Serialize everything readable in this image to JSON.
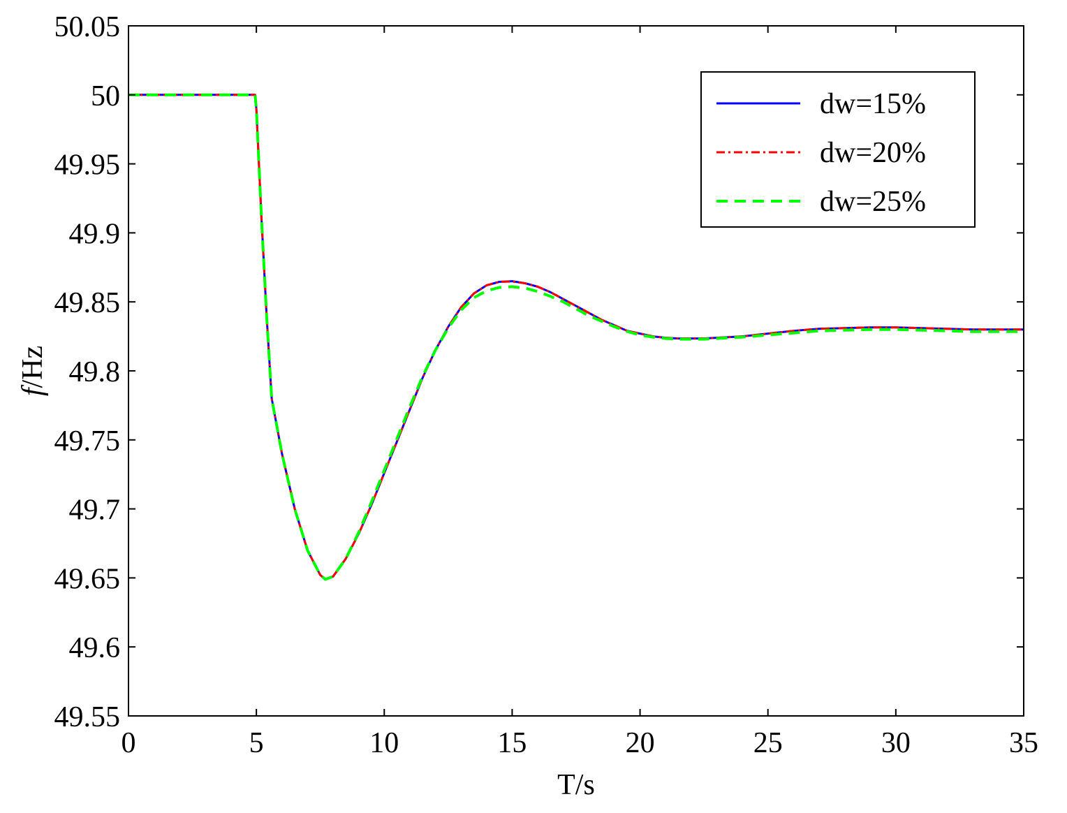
{
  "chart_data": {
    "type": "line",
    "title": "",
    "xlabel": "T/s",
    "ylabel_italic": "f",
    "ylabel_rest": "/Hz",
    "xlim": [
      0,
      35
    ],
    "ylim": [
      49.55,
      50.05
    ],
    "grid": false,
    "legend_position": "top-right",
    "x_ticks": [
      {
        "value": 0,
        "label": "0"
      },
      {
        "value": 5,
        "label": "5"
      },
      {
        "value": 10,
        "label": "10"
      },
      {
        "value": 15,
        "label": "15"
      },
      {
        "value": 20,
        "label": "20"
      },
      {
        "value": 25,
        "label": "25"
      },
      {
        "value": 30,
        "label": "30"
      },
      {
        "value": 35,
        "label": "35"
      }
    ],
    "y_ticks": [
      {
        "value": 49.55,
        "label": "49.55"
      },
      {
        "value": 49.6,
        "label": "49.6"
      },
      {
        "value": 49.65,
        "label": "49.65"
      },
      {
        "value": 49.7,
        "label": "49.7"
      },
      {
        "value": 49.75,
        "label": "49.75"
      },
      {
        "value": 49.8,
        "label": "49.8"
      },
      {
        "value": 49.85,
        "label": "49.85"
      },
      {
        "value": 49.9,
        "label": "49.9"
      },
      {
        "value": 49.95,
        "label": "49.95"
      },
      {
        "value": 50.0,
        "label": "50"
      },
      {
        "value": 50.05,
        "label": "50.05"
      }
    ],
    "series": [
      {
        "name": "dw=15%",
        "color": "#0000ff",
        "style": "solid",
        "x": [
          0,
          4.95,
          5.0,
          5.2,
          5.4,
          5.6,
          6.0,
          6.5,
          7.0,
          7.5,
          7.7,
          8.0,
          8.5,
          9.0,
          9.5,
          10.0,
          10.5,
          11.0,
          11.5,
          12.0,
          12.5,
          13.0,
          13.5,
          14.0,
          14.5,
          15.0,
          15.5,
          16.0,
          16.5,
          17.0,
          17.5,
          18.0,
          18.5,
          19.0,
          19.5,
          20.0,
          20.5,
          21.0,
          21.5,
          22.0,
          22.5,
          23.0,
          24.0,
          25.0,
          26.0,
          27.0,
          28.0,
          29.0,
          30.0,
          31.0,
          32.0,
          33.0,
          34.0,
          35.0
        ],
        "y": [
          50.0,
          50.0,
          49.99,
          49.91,
          49.84,
          49.78,
          49.74,
          49.7,
          49.67,
          49.652,
          49.649,
          49.651,
          49.664,
          49.682,
          49.703,
          49.726,
          49.749,
          49.772,
          49.795,
          49.815,
          49.832,
          49.846,
          49.856,
          49.862,
          49.8645,
          49.865,
          49.8635,
          49.861,
          49.857,
          49.852,
          49.847,
          49.842,
          49.837,
          49.833,
          49.829,
          49.827,
          49.825,
          49.824,
          49.8235,
          49.8235,
          49.8235,
          49.824,
          49.825,
          49.827,
          49.829,
          49.8305,
          49.831,
          49.8315,
          49.8315,
          49.831,
          49.8305,
          49.83,
          49.83,
          49.83
        ]
      },
      {
        "name": "dw=20%",
        "color": "#ff0000",
        "style": "dashdot",
        "x": [
          0,
          4.95,
          5.0,
          5.2,
          5.4,
          5.6,
          6.0,
          6.5,
          7.0,
          7.5,
          7.7,
          8.0,
          8.5,
          9.0,
          9.5,
          10.0,
          10.5,
          11.0,
          11.5,
          12.0,
          12.5,
          13.0,
          13.5,
          14.0,
          14.5,
          15.0,
          15.5,
          16.0,
          16.5,
          17.0,
          17.5,
          18.0,
          18.5,
          19.0,
          19.5,
          20.0,
          20.5,
          21.0,
          21.5,
          22.0,
          22.5,
          23.0,
          24.0,
          25.0,
          26.0,
          27.0,
          28.0,
          29.0,
          30.0,
          31.0,
          32.0,
          33.0,
          34.0,
          35.0
        ],
        "y": [
          50.0,
          50.0,
          49.99,
          49.91,
          49.84,
          49.78,
          49.74,
          49.7,
          49.67,
          49.652,
          49.649,
          49.651,
          49.664,
          49.682,
          49.703,
          49.726,
          49.749,
          49.772,
          49.795,
          49.815,
          49.832,
          49.846,
          49.856,
          49.862,
          49.8645,
          49.8648,
          49.8635,
          49.861,
          49.857,
          49.852,
          49.847,
          49.842,
          49.837,
          49.833,
          49.829,
          49.827,
          49.825,
          49.824,
          49.8235,
          49.8235,
          49.8235,
          49.824,
          49.825,
          49.827,
          49.829,
          49.8305,
          49.831,
          49.8315,
          49.8315,
          49.831,
          49.8305,
          49.83,
          49.83,
          49.83
        ]
      },
      {
        "name": "dw=25%",
        "color": "#00ff00",
        "style": "dashed",
        "x": [
          0,
          4.95,
          5.0,
          5.2,
          5.4,
          5.6,
          6.0,
          6.5,
          7.0,
          7.5,
          7.7,
          8.0,
          8.5,
          9.0,
          9.5,
          10.0,
          10.5,
          11.0,
          11.5,
          12.0,
          12.5,
          13.0,
          13.5,
          14.0,
          14.5,
          15.0,
          15.5,
          16.0,
          16.5,
          17.0,
          17.5,
          18.0,
          18.5,
          19.0,
          19.5,
          20.0,
          20.5,
          21.0,
          21.5,
          22.0,
          22.5,
          23.0,
          24.0,
          25.0,
          26.0,
          27.0,
          28.0,
          29.0,
          30.0,
          31.0,
          32.0,
          33.0,
          34.0,
          35.0
        ],
        "y": [
          50.0,
          50.0,
          49.99,
          49.91,
          49.84,
          49.78,
          49.74,
          49.7,
          49.67,
          49.652,
          49.649,
          49.651,
          49.664,
          49.683,
          49.705,
          49.728,
          49.751,
          49.774,
          49.796,
          49.815,
          49.831,
          49.844,
          49.853,
          49.858,
          49.8605,
          49.861,
          49.86,
          49.8575,
          49.854,
          49.85,
          49.845,
          49.84,
          49.836,
          49.832,
          49.8285,
          49.826,
          49.8245,
          49.8235,
          49.823,
          49.823,
          49.823,
          49.8235,
          49.8245,
          49.826,
          49.8275,
          49.829,
          49.8295,
          49.83,
          49.83,
          49.8295,
          49.829,
          49.8285,
          49.8285,
          49.8285
        ]
      }
    ]
  }
}
